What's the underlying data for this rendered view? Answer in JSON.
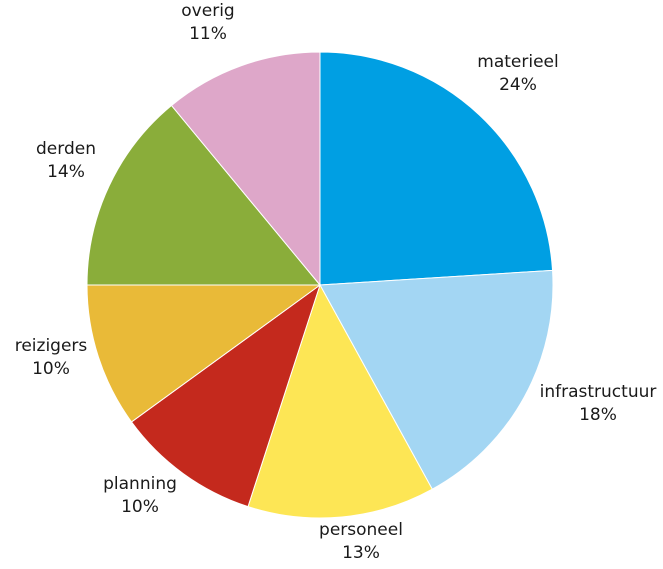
{
  "chart_data": {
    "type": "pie",
    "title": "",
    "start": "12 o'clock",
    "direction": "clockwise",
    "slices": [
      {
        "label": "materieel",
        "value": 24,
        "value_label": "24%",
        "color": "#009fe3"
      },
      {
        "label": "infrastructuur",
        "value": 18,
        "value_label": "18%",
        "color": "#a3d6f3"
      },
      {
        "label": "personeel",
        "value": 13,
        "value_label": "13%",
        "color": "#fde655"
      },
      {
        "label": "planning",
        "value": 10,
        "value_label": "10%",
        "color": "#c4291d"
      },
      {
        "label": "reizigers",
        "value": 10,
        "value_label": "10%",
        "color": "#e9ba38"
      },
      {
        "label": "derden",
        "value": 14,
        "value_label": "14%",
        "color": "#8aad3a"
      },
      {
        "label": "overig",
        "value": 11,
        "value_label": "11%",
        "color": "#dea7c9"
      }
    ]
  }
}
